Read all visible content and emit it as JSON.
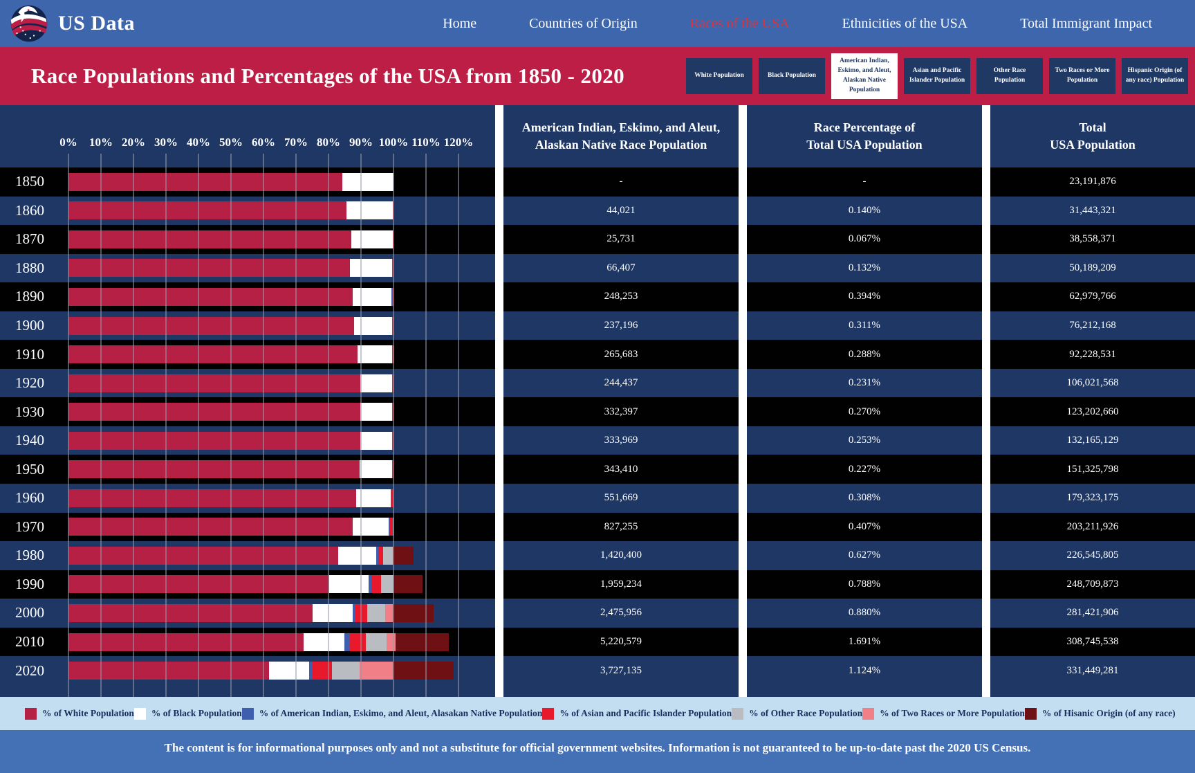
{
  "navbar": {
    "brand": "US Data",
    "links": [
      {
        "label": "Home",
        "active": false
      },
      {
        "label": "Countries of Origin",
        "active": false
      },
      {
        "label": "Races of the USA",
        "active": true
      },
      {
        "label": "Ethnicities of the USA",
        "active": false
      },
      {
        "label": "Total Immigrant Impact",
        "active": false
      }
    ]
  },
  "header": {
    "title": "Race Populations and Percentages of the USA from 1850 - 2020",
    "tabs": [
      {
        "label": "White Population",
        "active": false
      },
      {
        "label": "Black Population",
        "active": false
      },
      {
        "label": "American Indian, Eskimo, and Aleut, Alaskan Native Population",
        "active": true
      },
      {
        "label": "Asian and Pacific Islander Population",
        "active": false
      },
      {
        "label": "Other Race Population",
        "active": false
      },
      {
        "label": "Two Races or More Population",
        "active": false
      },
      {
        "label": "Hispanic Origin (of any race) Population",
        "active": false
      }
    ]
  },
  "table": {
    "columns": [
      {
        "id": "population",
        "header_lines": [
          "American Indian, Eskimo, and Aleut,",
          "Alaskan Native Race Population"
        ]
      },
      {
        "id": "percent",
        "header_lines": [
          "Race Percentage of",
          "Total USA Population"
        ]
      },
      {
        "id": "total",
        "header_lines": [
          "Total",
          "USA Population"
        ]
      }
    ],
    "rows": [
      {
        "year": "1850",
        "population": "-",
        "percent": "-",
        "total": "23,191,876"
      },
      {
        "year": "1860",
        "population": "44,021",
        "percent": "0.140%",
        "total": "31,443,321"
      },
      {
        "year": "1870",
        "population": "25,731",
        "percent": "0.067%",
        "total": "38,558,371"
      },
      {
        "year": "1880",
        "population": "66,407",
        "percent": "0.132%",
        "total": "50,189,209"
      },
      {
        "year": "1890",
        "population": "248,253",
        "percent": "0.394%",
        "total": "62,979,766"
      },
      {
        "year": "1900",
        "population": "237,196",
        "percent": "0.311%",
        "total": "76,212,168"
      },
      {
        "year": "1910",
        "population": "265,683",
        "percent": "0.288%",
        "total": "92,228,531"
      },
      {
        "year": "1920",
        "population": "244,437",
        "percent": "0.231%",
        "total": "106,021,568"
      },
      {
        "year": "1930",
        "population": "332,397",
        "percent": "0.270%",
        "total": "123,202,660"
      },
      {
        "year": "1940",
        "population": "333,969",
        "percent": "0.253%",
        "total": "132,165,129"
      },
      {
        "year": "1950",
        "population": "343,410",
        "percent": "0.227%",
        "total": "151,325,798"
      },
      {
        "year": "1960",
        "population": "551,669",
        "percent": "0.308%",
        "total": "179,323,175"
      },
      {
        "year": "1970",
        "population": "827,255",
        "percent": "0.407%",
        "total": "203,211,926"
      },
      {
        "year": "1980",
        "population": "1,420,400",
        "percent": "0.627%",
        "total": "226,545,805"
      },
      {
        "year": "1990",
        "population": "1,959,234",
        "percent": "0.788%",
        "total": "248,709,873"
      },
      {
        "year": "2000",
        "population": "2,475,956",
        "percent": "0.880%",
        "total": "281,421,906"
      },
      {
        "year": "2010",
        "population": "5,220,579",
        "percent": "1.691%",
        "total": "308,745,538"
      },
      {
        "year": "2020",
        "population": "3,727,135",
        "percent": "1.124%",
        "total": "331,449,281"
      }
    ]
  },
  "chart_data": {
    "type": "bar",
    "orientation": "horizontal-stacked",
    "title": "Race Populations and Percentages of the USA from 1850 - 2020",
    "categories": [
      "1850",
      "1860",
      "1870",
      "1880",
      "1890",
      "1900",
      "1910",
      "1920",
      "1930",
      "1940",
      "1950",
      "1960",
      "1970",
      "1980",
      "1990",
      "2000",
      "2010",
      "2020"
    ],
    "x_ticks": [
      "0%",
      "10%",
      "20%",
      "30%",
      "40%",
      "50%",
      "60%",
      "70%",
      "80%",
      "90%",
      "100%",
      "110%",
      "120%"
    ],
    "xlim": [
      0,
      120
    ],
    "grid": true,
    "series": [
      {
        "name": "% of White Population",
        "color": "#b62045",
        "values": [
          84.3,
          85.6,
          87.1,
          86.5,
          87.5,
          87.9,
          88.9,
          89.7,
          89.8,
          89.8,
          89.5,
          88.6,
          87.5,
          83.0,
          80.3,
          75.1,
          72.4,
          61.6
        ]
      },
      {
        "name": "% of Black Population",
        "color": "#ffffff",
        "values": [
          15.7,
          14.1,
          12.7,
          13.1,
          11.9,
          11.6,
          10.7,
          9.9,
          9.7,
          9.8,
          10.0,
          10.5,
          11.1,
          11.7,
          12.1,
          12.3,
          12.6,
          12.4
        ]
      },
      {
        "name": "% of American Indian, Eskimo, and Aleut, Alasakan Native Population",
        "color": "#3f5fae",
        "values": [
          0,
          0.14,
          0.067,
          0.132,
          0.394,
          0.311,
          0.288,
          0.231,
          0.27,
          0.253,
          0.227,
          0.308,
          0.407,
          0.627,
          0.788,
          0.88,
          1.691,
          1.124
        ]
      },
      {
        "name": "% of Asian and Pacific Islander Population",
        "color": "#e8192c",
        "values": [
          0,
          0.1,
          0.2,
          0.2,
          0.2,
          0.3,
          0.3,
          0.3,
          0.2,
          0.2,
          0.2,
          0.5,
          0.8,
          1.5,
          2.9,
          3.7,
          4.9,
          6.0
        ]
      },
      {
        "name": "% of Other Race Population",
        "color": "#b9bcc0",
        "values": [
          0,
          0,
          0,
          0,
          0,
          0,
          0,
          0,
          0,
          0,
          0,
          0,
          0.3,
          3.0,
          3.9,
          5.5,
          6.2,
          8.4
        ]
      },
      {
        "name": "% of Two Races or More Population",
        "color": "#f07f88",
        "values": [
          0,
          0,
          0,
          0,
          0,
          0,
          0,
          0,
          0,
          0,
          0,
          0,
          0,
          0,
          0,
          2.4,
          2.9,
          10.2
        ]
      },
      {
        "name": "% of Hisanic Origin (of any race)",
        "color": "#6e1014",
        "values": [
          0,
          0,
          0,
          0,
          0,
          0,
          0,
          0,
          0,
          0,
          0,
          0,
          0,
          6.4,
          9.0,
          12.5,
          16.3,
          18.7
        ]
      }
    ]
  },
  "legend": {
    "items": [
      {
        "label": "% of White Population",
        "color": "#b62045"
      },
      {
        "label": "% of Black Population",
        "color": "#ffffff"
      },
      {
        "label": "% of American Indian, Eskimo, and Aleut, Alasakan Native Population",
        "color": "#3f5fae"
      },
      {
        "label": "% of Asian and Pacific Islander Population",
        "color": "#e8192c"
      },
      {
        "label": "% of Other Race Population",
        "color": "#b9bcc0"
      },
      {
        "label": "% of Two Races or More Population",
        "color": "#f07f88"
      },
      {
        "label": "% of Hisanic Origin (of any race)",
        "color": "#6e1014"
      }
    ]
  },
  "footer": {
    "text": "The content is for informational purposes only and not a substitute for official government websites. Information is not guaranteed to be up-to-date past the 2020 US Census."
  }
}
